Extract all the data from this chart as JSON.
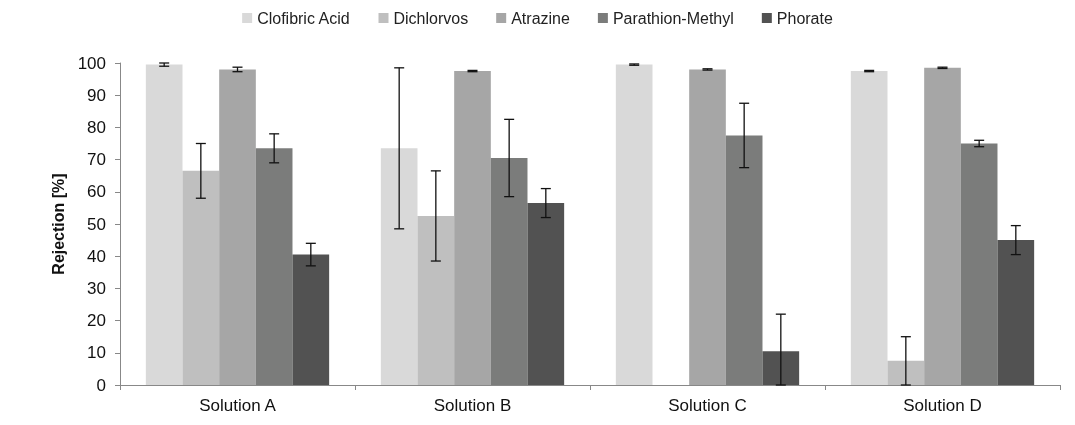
{
  "chart_data": {
    "type": "bar",
    "ylabel": "Rejection [%]",
    "categories": [
      "Solution A",
      "Solution B",
      "Solution C",
      "Solution D"
    ],
    "series": [
      {
        "name": "Clofibric Acid",
        "color": "#d9d9d9",
        "values": [
          99.5,
          73.5,
          99.5,
          97.5
        ],
        "errors": [
          0.5,
          25,
          0.2,
          0.2
        ]
      },
      {
        "name": "Dichlorvos",
        "color": "#bfbfbf",
        "values": [
          66.5,
          52.5,
          null,
          7.5
        ],
        "errors": [
          8.5,
          14,
          null,
          [
            0,
            15
          ]
        ]
      },
      {
        "name": "Atrazine",
        "color": "#a6a6a6",
        "values": [
          98,
          97.5,
          98,
          98.5
        ],
        "errors": [
          0.7,
          0.2,
          0.2,
          0.2
        ]
      },
      {
        "name": "Parathion-Methyl",
        "color": "#7b7c7b",
        "values": [
          73.5,
          70.5,
          77.5,
          75
        ],
        "errors": [
          4.5,
          12,
          10,
          1
        ]
      },
      {
        "name": "Phorate",
        "color": "#525252",
        "values": [
          40.5,
          56.5,
          10.5,
          45
        ],
        "errors": [
          3.5,
          4.5,
          [
            0,
            22
          ],
          4.5
        ]
      }
    ],
    "ylim": [
      0,
      100
    ],
    "yticks": [
      0,
      10,
      20,
      30,
      40,
      50,
      60,
      70,
      80,
      90,
      100
    ],
    "grid": false,
    "legend": "top"
  }
}
